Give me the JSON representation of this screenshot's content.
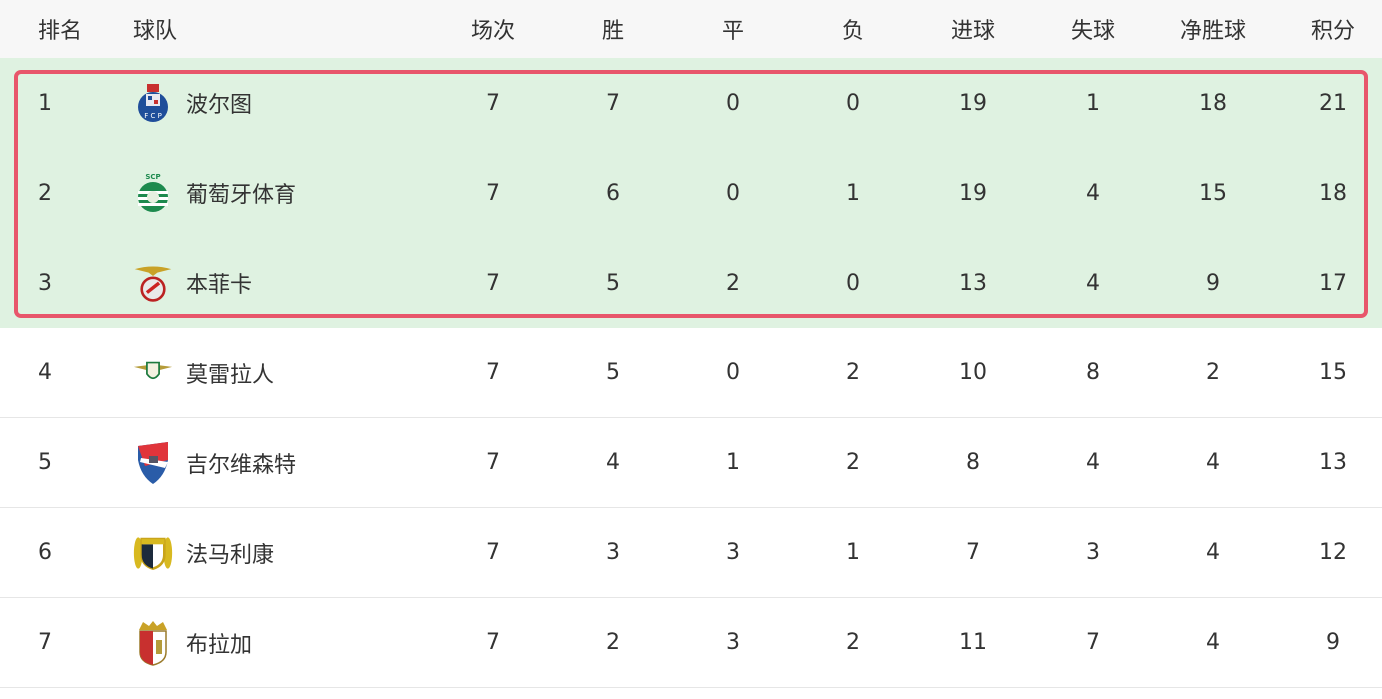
{
  "headers": {
    "rank": "排名",
    "team": "球队",
    "played": "场次",
    "won": "胜",
    "drawn": "平",
    "lost": "负",
    "gf": "进球",
    "ga": "失球",
    "gd": "净胜球",
    "pts": "积分"
  },
  "highlight_color": "#e8566b",
  "rows": [
    {
      "rank": "1",
      "team": "波尔图",
      "logo": "porto-crest",
      "played": "7",
      "won": "7",
      "drawn": "0",
      "lost": "0",
      "gf": "19",
      "ga": "1",
      "gd": "18",
      "pts": "21"
    },
    {
      "rank": "2",
      "team": "葡萄牙体育",
      "logo": "sporting-crest",
      "played": "7",
      "won": "6",
      "drawn": "0",
      "lost": "1",
      "gf": "19",
      "ga": "4",
      "gd": "15",
      "pts": "18"
    },
    {
      "rank": "3",
      "team": "本菲卡",
      "logo": "benfica-crest",
      "played": "7",
      "won": "5",
      "drawn": "2",
      "lost": "0",
      "gf": "13",
      "ga": "4",
      "gd": "9",
      "pts": "17"
    },
    {
      "rank": "4",
      "team": "莫雷拉人",
      "logo": "moreirense-crest",
      "played": "7",
      "won": "5",
      "drawn": "0",
      "lost": "2",
      "gf": "10",
      "ga": "8",
      "gd": "2",
      "pts": "15"
    },
    {
      "rank": "5",
      "team": "吉尔维森特",
      "logo": "gil-vicente-crest",
      "played": "7",
      "won": "4",
      "drawn": "1",
      "lost": "2",
      "gf": "8",
      "ga": "4",
      "gd": "4",
      "pts": "13"
    },
    {
      "rank": "6",
      "team": "法马利康",
      "logo": "famalicao-crest",
      "played": "7",
      "won": "3",
      "drawn": "3",
      "lost": "1",
      "gf": "7",
      "ga": "3",
      "gd": "4",
      "pts": "12"
    },
    {
      "rank": "7",
      "team": "布拉加",
      "logo": "braga-crest",
      "played": "7",
      "won": "2",
      "drawn": "3",
      "lost": "2",
      "gf": "11",
      "ga": "7",
      "gd": "4",
      "pts": "9"
    }
  ]
}
